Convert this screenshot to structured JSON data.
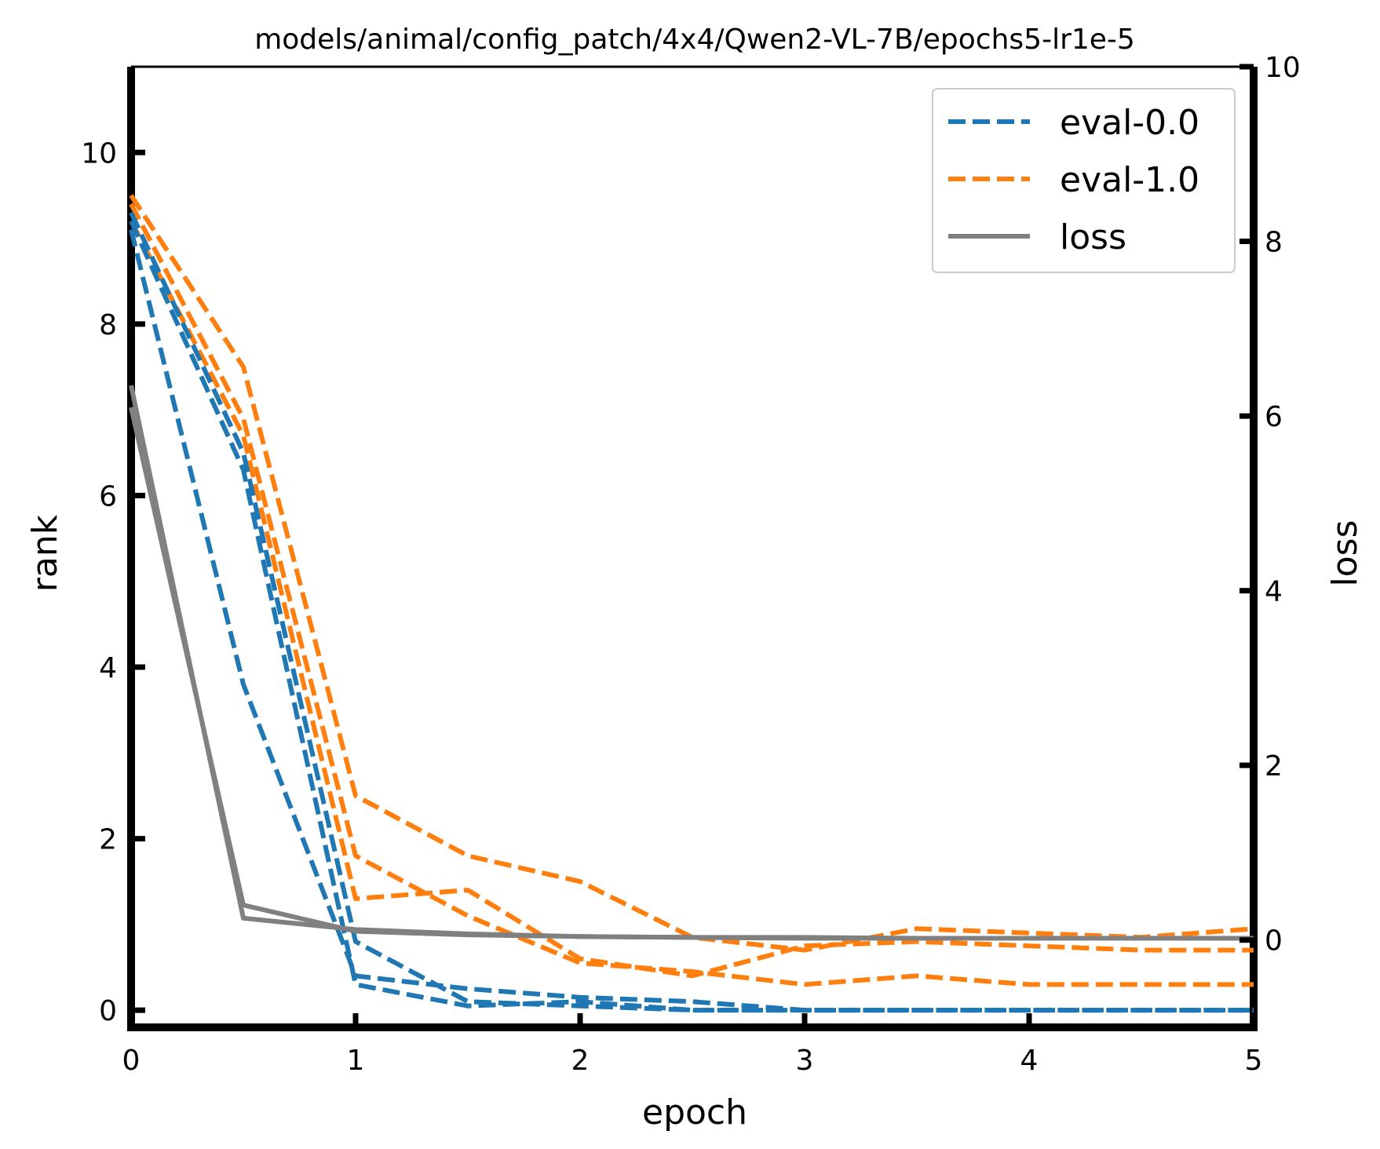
{
  "chart_data": {
    "type": "line",
    "title": "models/animal/config_patch/4x4/Qwen2-VL-7B/epochs5-lr1e-5",
    "xlabel": "epoch",
    "ylabel": "rank",
    "y2label": "loss",
    "xlim": [
      0,
      5
    ],
    "ylim": [
      -0.2,
      11.0
    ],
    "y2lim": [
      -1.0,
      10.0
    ],
    "xticks": [
      "0",
      "1",
      "2",
      "3",
      "4",
      "5"
    ],
    "yticks": [
      "0",
      "2",
      "4",
      "6",
      "8",
      "10"
    ],
    "y2ticks": [
      "0",
      "2",
      "4",
      "6",
      "8",
      "10"
    ],
    "grid": false,
    "legend_position": "top-right",
    "legend": [
      {
        "label": "eval-0.0",
        "style": "dashed",
        "color": "#1f77b4"
      },
      {
        "label": "eval-1.0",
        "style": "dashed",
        "color": "#ff7f0e"
      },
      {
        "label": "loss",
        "style": "solid",
        "color": "#808080"
      }
    ],
    "x": [
      0,
      0.5,
      1,
      1.5,
      2,
      2.5,
      3,
      3.5,
      4,
      4.5,
      5
    ],
    "series": [
      {
        "group": "eval-0.0",
        "axis": "rank",
        "values": [
          9.3,
          6.5,
          0.8,
          0.1,
          0.05,
          0.0,
          0.0,
          0.0,
          0.0,
          0.0,
          0.0
        ]
      },
      {
        "group": "eval-0.0",
        "axis": "rank",
        "values": [
          9.1,
          3.8,
          0.4,
          0.25,
          0.15,
          0.1,
          0.0,
          0.0,
          0.0,
          0.0,
          0.0
        ]
      },
      {
        "group": "eval-0.0",
        "axis": "rank",
        "values": [
          9.2,
          6.3,
          0.3,
          0.05,
          0.1,
          0.0,
          0.0,
          0.0,
          0.0,
          0.0,
          0.0
        ]
      },
      {
        "group": "eval-1.0",
        "axis": "rank",
        "values": [
          9.5,
          7.5,
          2.5,
          1.8,
          1.5,
          0.85,
          0.7,
          0.95,
          0.9,
          0.85,
          0.95
        ]
      },
      {
        "group": "eval-1.0",
        "axis": "rank",
        "values": [
          9.4,
          6.9,
          1.8,
          1.1,
          0.55,
          0.45,
          0.3,
          0.4,
          0.3,
          0.3,
          0.3
        ]
      },
      {
        "group": "eval-1.0",
        "axis": "rank",
        "values": [
          9.2,
          6.7,
          1.3,
          1.4,
          0.6,
          0.4,
          0.75,
          0.8,
          0.75,
          0.7,
          0.7
        ]
      },
      {
        "group": "loss",
        "axis": "loss",
        "values": [
          6.35,
          0.25,
          0.12,
          0.07,
          0.04,
          0.03,
          0.03,
          0.02,
          0.02,
          0.02,
          0.02
        ]
      },
      {
        "group": "loss",
        "axis": "loss",
        "values": [
          6.1,
          0.4,
          0.1,
          0.06,
          0.04,
          0.03,
          0.02,
          0.02,
          0.02,
          0.02,
          0.02
        ]
      }
    ]
  }
}
